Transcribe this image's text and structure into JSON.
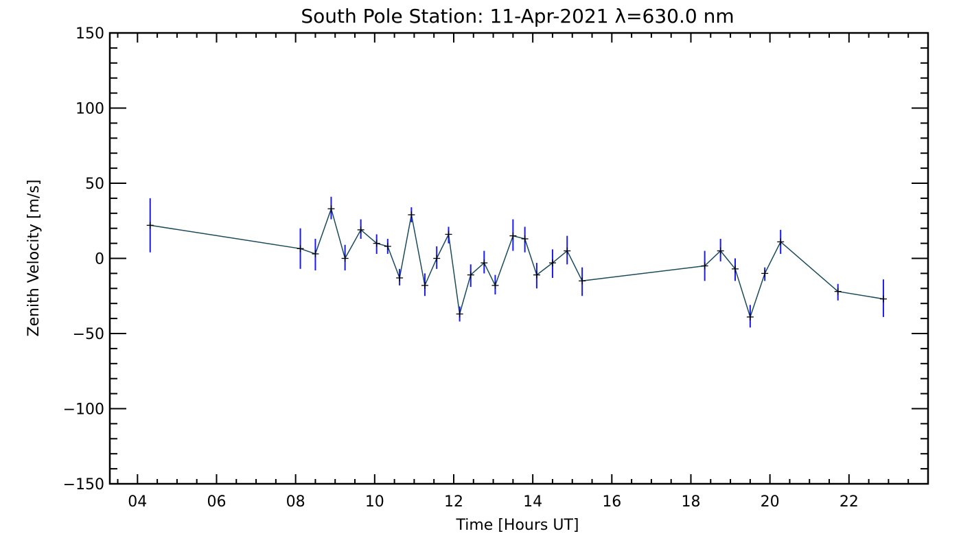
{
  "chart_data": {
    "type": "line",
    "title": "South Pole Station: 11-Apr-2021 λ=630.0 nm",
    "xlabel": "Time [Hours UT]",
    "ylabel": "Zenith Velocity [m/s]",
    "xlim": [
      3.3,
      24.0
    ],
    "ylim": [
      -150,
      150
    ],
    "x_ticks": [
      {
        "value": 4,
        "label": "04"
      },
      {
        "value": 6,
        "label": "06"
      },
      {
        "value": 8,
        "label": "08"
      },
      {
        "value": 10,
        "label": "10"
      },
      {
        "value": 12,
        "label": "12"
      },
      {
        "value": 14,
        "label": "14"
      },
      {
        "value": 16,
        "label": "16"
      },
      {
        "value": 18,
        "label": "18"
      },
      {
        "value": 20,
        "label": "20"
      },
      {
        "value": 22,
        "label": "22"
      }
    ],
    "y_ticks": [
      {
        "value": 150,
        "label": "150"
      },
      {
        "value": 100,
        "label": "100"
      },
      {
        "value": 50,
        "label": "50"
      },
      {
        "value": 0,
        "label": "0"
      },
      {
        "value": -50,
        "label": "−50"
      },
      {
        "value": -100,
        "label": "−100"
      },
      {
        "value": -150,
        "label": "−150"
      }
    ],
    "grid": false,
    "line_color": "#1a4a5a",
    "errorbar_color": "#1a1aee",
    "marker_color": "#000000",
    "points": [
      {
        "x": 4.32,
        "y": 22,
        "lo": 4,
        "hi": 40
      },
      {
        "x": 8.12,
        "y": 6.5,
        "lo": -7,
        "hi": 20
      },
      {
        "x": 8.5,
        "y": 3,
        "lo": -8,
        "hi": 13
      },
      {
        "x": 8.9,
        "y": 33,
        "lo": 26,
        "hi": 41
      },
      {
        "x": 9.25,
        "y": 0,
        "lo": -8,
        "hi": 9
      },
      {
        "x": 9.65,
        "y": 19,
        "lo": 13,
        "hi": 26
      },
      {
        "x": 10.05,
        "y": 10,
        "lo": 3,
        "hi": 16
      },
      {
        "x": 10.33,
        "y": 8,
        "lo": 3,
        "hi": 13
      },
      {
        "x": 10.63,
        "y": -13,
        "lo": -18,
        "hi": -7
      },
      {
        "x": 10.93,
        "y": 29,
        "lo": 24,
        "hi": 34
      },
      {
        "x": 11.27,
        "y": -18,
        "lo": -25,
        "hi": -10
      },
      {
        "x": 11.57,
        "y": 0,
        "lo": -7,
        "hi": 8
      },
      {
        "x": 11.87,
        "y": 16,
        "lo": 10,
        "hi": 21
      },
      {
        "x": 12.15,
        "y": -37,
        "lo": -42,
        "hi": -32
      },
      {
        "x": 12.43,
        "y": -11,
        "lo": -19,
        "hi": -4
      },
      {
        "x": 12.77,
        "y": -3,
        "lo": -10,
        "hi": 5
      },
      {
        "x": 13.05,
        "y": -18,
        "lo": -24,
        "hi": -11
      },
      {
        "x": 13.5,
        "y": 15,
        "lo": 5,
        "hi": 26
      },
      {
        "x": 13.8,
        "y": 13,
        "lo": 4,
        "hi": 21
      },
      {
        "x": 14.1,
        "y": -11,
        "lo": -20,
        "hi": -3
      },
      {
        "x": 14.5,
        "y": -3,
        "lo": -13,
        "hi": 6
      },
      {
        "x": 14.87,
        "y": 5,
        "lo": -4,
        "hi": 15
      },
      {
        "x": 15.25,
        "y": -15,
        "lo": -25,
        "hi": -6
      },
      {
        "x": 18.35,
        "y": -5,
        "lo": -15,
        "hi": 5
      },
      {
        "x": 18.75,
        "y": 5,
        "lo": -2,
        "hi": 13
      },
      {
        "x": 19.12,
        "y": -7,
        "lo": -15,
        "hi": 0
      },
      {
        "x": 19.5,
        "y": -39,
        "lo": -46,
        "hi": -31
      },
      {
        "x": 19.87,
        "y": -10,
        "lo": -15,
        "hi": -6
      },
      {
        "x": 20.27,
        "y": 11,
        "lo": 3,
        "hi": 19
      },
      {
        "x": 21.72,
        "y": -22,
        "lo": -28,
        "hi": -17
      },
      {
        "x": 22.87,
        "y": -27,
        "lo": -39,
        "hi": -14
      }
    ]
  }
}
